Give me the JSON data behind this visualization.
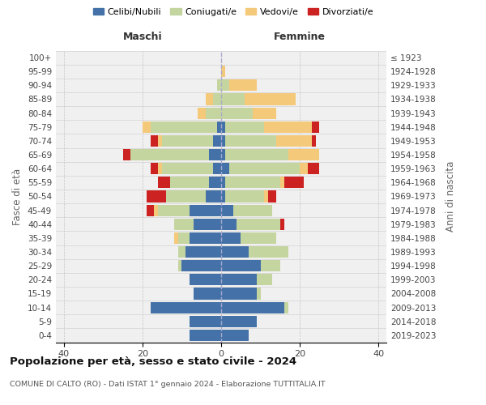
{
  "age_groups": [
    "0-4",
    "5-9",
    "10-14",
    "15-19",
    "20-24",
    "25-29",
    "30-34",
    "35-39",
    "40-44",
    "45-49",
    "50-54",
    "55-59",
    "60-64",
    "65-69",
    "70-74",
    "75-79",
    "80-84",
    "85-89",
    "90-94",
    "95-99",
    "100+"
  ],
  "birth_years": [
    "2019-2023",
    "2014-2018",
    "2009-2013",
    "2004-2008",
    "1999-2003",
    "1994-1998",
    "1989-1993",
    "1984-1988",
    "1979-1983",
    "1974-1978",
    "1969-1973",
    "1964-1968",
    "1959-1963",
    "1954-1958",
    "1949-1953",
    "1944-1948",
    "1939-1943",
    "1934-1938",
    "1929-1933",
    "1924-1928",
    "≤ 1923"
  ],
  "male": {
    "celibi": [
      8,
      8,
      18,
      7,
      8,
      10,
      9,
      8,
      7,
      8,
      4,
      3,
      2,
      3,
      2,
      1,
      0,
      0,
      0,
      0,
      0
    ],
    "coniugati": [
      0,
      0,
      0,
      0,
      0,
      1,
      2,
      3,
      5,
      8,
      10,
      10,
      13,
      20,
      13,
      17,
      4,
      2,
      1,
      0,
      0
    ],
    "vedovi": [
      0,
      0,
      0,
      0,
      0,
      0,
      0,
      1,
      0,
      1,
      0,
      0,
      1,
      0,
      1,
      2,
      2,
      2,
      0,
      0,
      0
    ],
    "divorziati": [
      0,
      0,
      0,
      0,
      0,
      0,
      0,
      0,
      0,
      2,
      5,
      3,
      2,
      2,
      2,
      0,
      0,
      0,
      0,
      0,
      0
    ]
  },
  "female": {
    "nubili": [
      7,
      9,
      16,
      9,
      9,
      10,
      7,
      5,
      4,
      3,
      1,
      1,
      2,
      1,
      1,
      1,
      0,
      0,
      0,
      0,
      0
    ],
    "coniugate": [
      0,
      0,
      1,
      1,
      4,
      5,
      10,
      9,
      11,
      10,
      10,
      14,
      18,
      16,
      13,
      10,
      8,
      6,
      2,
      0,
      0
    ],
    "vedove": [
      0,
      0,
      0,
      0,
      0,
      0,
      0,
      0,
      0,
      0,
      1,
      1,
      2,
      8,
      9,
      12,
      6,
      13,
      7,
      1,
      0
    ],
    "divorziate": [
      0,
      0,
      0,
      0,
      0,
      0,
      0,
      0,
      1,
      0,
      2,
      5,
      3,
      0,
      1,
      2,
      0,
      0,
      0,
      0,
      0
    ]
  },
  "color_celibi": "#4472a8",
  "color_coniugati": "#c5d5a0",
  "color_vedovi": "#f5c97a",
  "color_divorziati": "#cc2222",
  "xlim": 42,
  "title": "Popolazione per età, sesso e stato civile - 2024",
  "subtitle": "COMUNE DI CALTO (RO) - Dati ISTAT 1° gennaio 2024 - Elaborazione TUTTITALIA.IT",
  "ylabel_left": "Fasce di età",
  "ylabel_right": "Anni di nascita",
  "xlabel_male": "Maschi",
  "xlabel_female": "Femmine",
  "background_color": "#f0f0f0"
}
